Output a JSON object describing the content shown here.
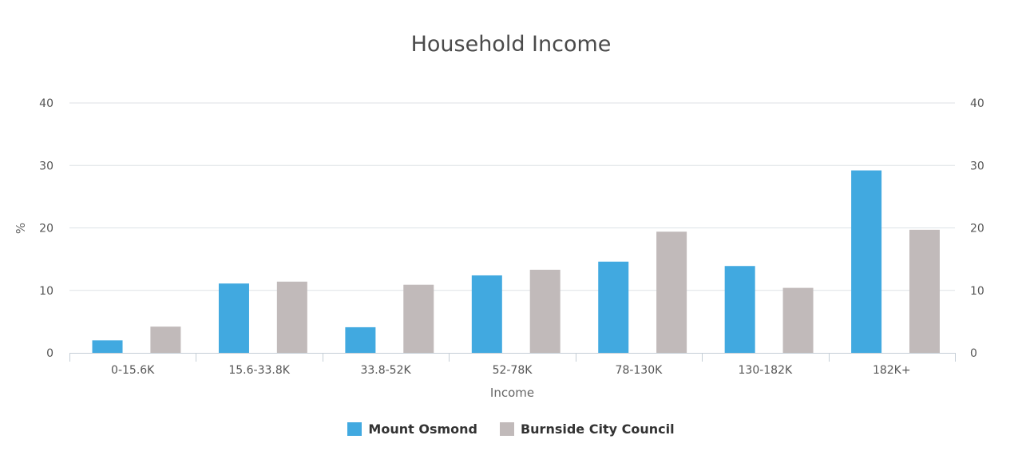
{
  "chart_data": {
    "type": "bar",
    "title": "Household Income",
    "xlabel": "Income",
    "ylabel": "%",
    "ylim": [
      0,
      40
    ],
    "yticks": [
      "0",
      "10",
      "20",
      "30",
      "40"
    ],
    "categories": [
      "0-15.6K",
      "15.6-33.8K",
      "33.8-52K",
      "52-78K",
      "78-130K",
      "130-182K",
      "182K+"
    ],
    "series": [
      {
        "name": "Mount Osmond",
        "color": "#41a9e0",
        "values": [
          2.0,
          11.1,
          4.1,
          12.4,
          14.6,
          13.9,
          29.2
        ]
      },
      {
        "name": "Burnside City Council",
        "color": "#c1baba",
        "values": [
          4.2,
          11.4,
          10.9,
          13.3,
          19.4,
          10.4,
          19.7
        ]
      }
    ],
    "grid": true,
    "legend_position": "bottom-center",
    "secondary_y_axis": true
  }
}
